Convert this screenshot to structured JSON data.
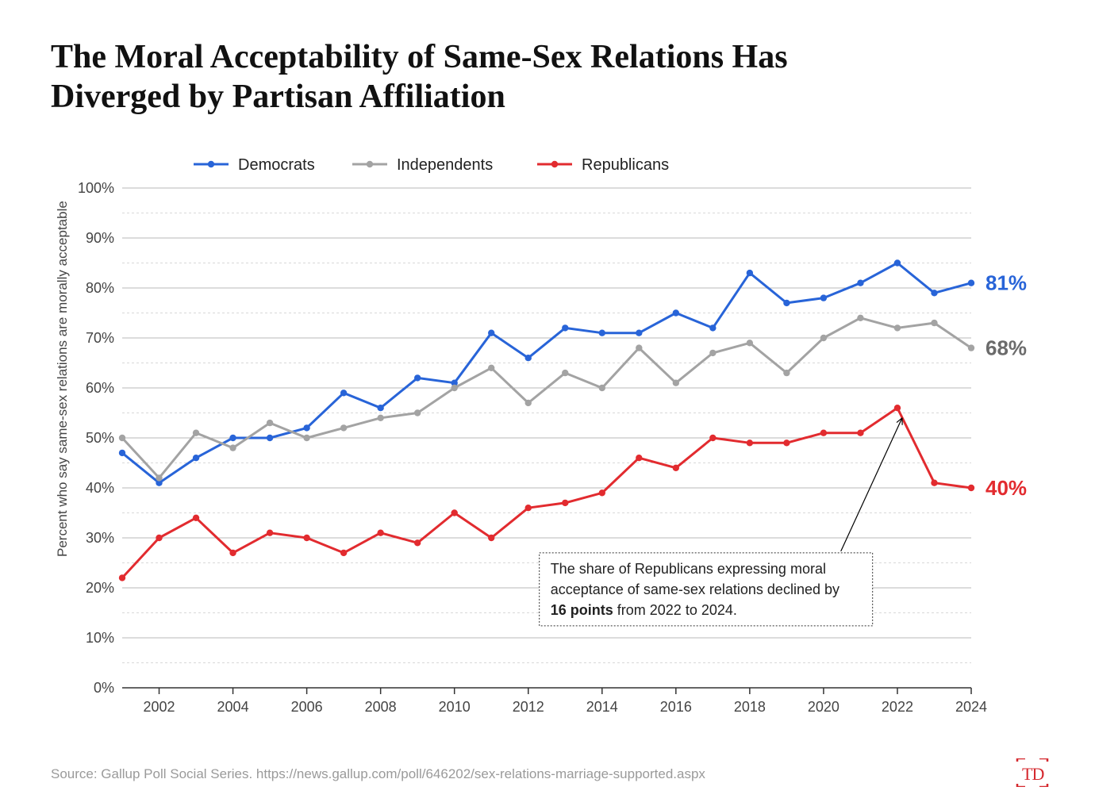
{
  "title": "The Moral Acceptability of Same-Sex Relations Has Diverged by Partisan Affiliation",
  "source": "Source:  Gallup Poll Social Series. https://news.gallup.com/poll/646202/sex-relations-marriage-supported.aspx",
  "logo": "TD",
  "chart": {
    "type": "line",
    "y_axis_label": "Percent who say same-sex relations are morally acceptable",
    "ylim": [
      0,
      100
    ],
    "ytick_step": 5,
    "ytick_major_step": 10,
    "ytick_suffix": "%",
    "xlim": [
      2001,
      2024
    ],
    "xtick_step": 2,
    "xtick_start": 2002,
    "background_color": "#ffffff",
    "grid_major_color": "#b8b8b8",
    "grid_minor_color": "#d8d8d8",
    "grid_minor_dash": "3,3",
    "axis_color": "#333333",
    "line_width": 3,
    "marker_radius": 4.2,
    "label_fontsize": 17,
    "tick_fontsize": 18,
    "legend_fontsize": 20,
    "end_label_fontsize": 26,
    "years": [
      2001,
      2002,
      2003,
      2004,
      2005,
      2006,
      2007,
      2008,
      2009,
      2010,
      2011,
      2012,
      2013,
      2014,
      2015,
      2016,
      2017,
      2018,
      2019,
      2020,
      2021,
      2022,
      2023,
      2024
    ],
    "series": [
      {
        "name": "Democrats",
        "color": "#2864d8",
        "values": [
          47,
          41,
          46,
          50,
          50,
          52,
          59,
          56,
          62,
          61,
          71,
          66,
          72,
          71,
          71,
          75,
          72,
          83,
          77,
          78,
          81,
          85,
          79,
          81
        ],
        "end_label": "81%"
      },
      {
        "name": "Independents",
        "color": "#a3a3a3",
        "values": [
          50,
          42,
          51,
          48,
          53,
          50,
          52,
          54,
          55,
          60,
          64,
          57,
          63,
          60,
          68,
          61,
          67,
          69,
          63,
          70,
          74,
          72,
          73,
          68
        ],
        "end_label": "68%"
      },
      {
        "name": "Republicans",
        "color": "#e22b2f",
        "values": [
          22,
          30,
          34,
          27,
          31,
          30,
          27,
          31,
          29,
          35,
          30,
          36,
          37,
          39,
          46,
          44,
          50,
          49,
          49,
          51,
          51,
          56,
          41,
          40
        ],
        "end_label": "40%"
      }
    ],
    "annotation": {
      "text_pre": "The share of Republicans expressing moral acceptance of same-sex relations declined by ",
      "text_bold": "16 points",
      "text_post": " from 2022 to 2024.",
      "box_border_color": "#333333",
      "box_border_dash": "2,2",
      "arrow_color": "#000000",
      "arrow_target_year": 2022,
      "arrow_target_value": 54
    }
  }
}
